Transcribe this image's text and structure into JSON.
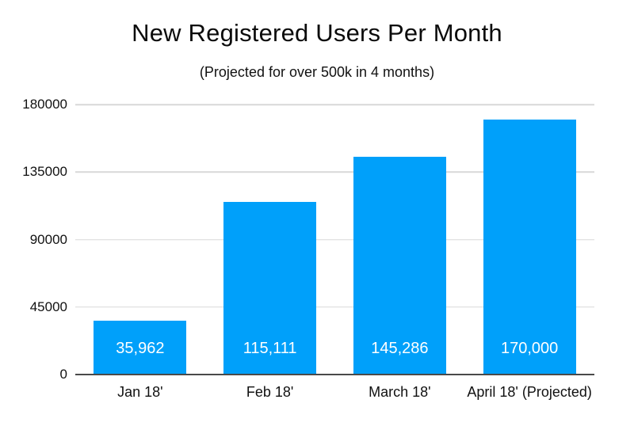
{
  "chart": {
    "title": "New Registered Users Per Month",
    "subtitle": "(Projected for over 500k in 4 months)"
  },
  "chart_data": {
    "type": "bar",
    "title": "New Registered Users Per Month",
    "subtitle": "(Projected for over 500k in 4 months)",
    "categories": [
      "Jan 18'",
      "Feb 18'",
      "March 18'",
      "April 18' (Projected)"
    ],
    "values": [
      35962,
      115111,
      145286,
      170000
    ],
    "value_labels": [
      "35,962",
      "115,111",
      "145,286",
      "170,000"
    ],
    "y_ticks": [
      0,
      45000,
      90000,
      135000,
      180000
    ],
    "y_tick_labels": [
      "0",
      "45000",
      "90000",
      "135000",
      "180000"
    ],
    "ylim": [
      0,
      180000
    ],
    "xlabel": "",
    "ylabel": "",
    "grid": true,
    "legend": false,
    "bar_color": "#00A0FA",
    "gridline_color": "#D8D8D8",
    "axis_line_color": "#4A4A4A",
    "value_label_color": "#FFFFFF",
    "background_color": "#FFFFFF"
  }
}
